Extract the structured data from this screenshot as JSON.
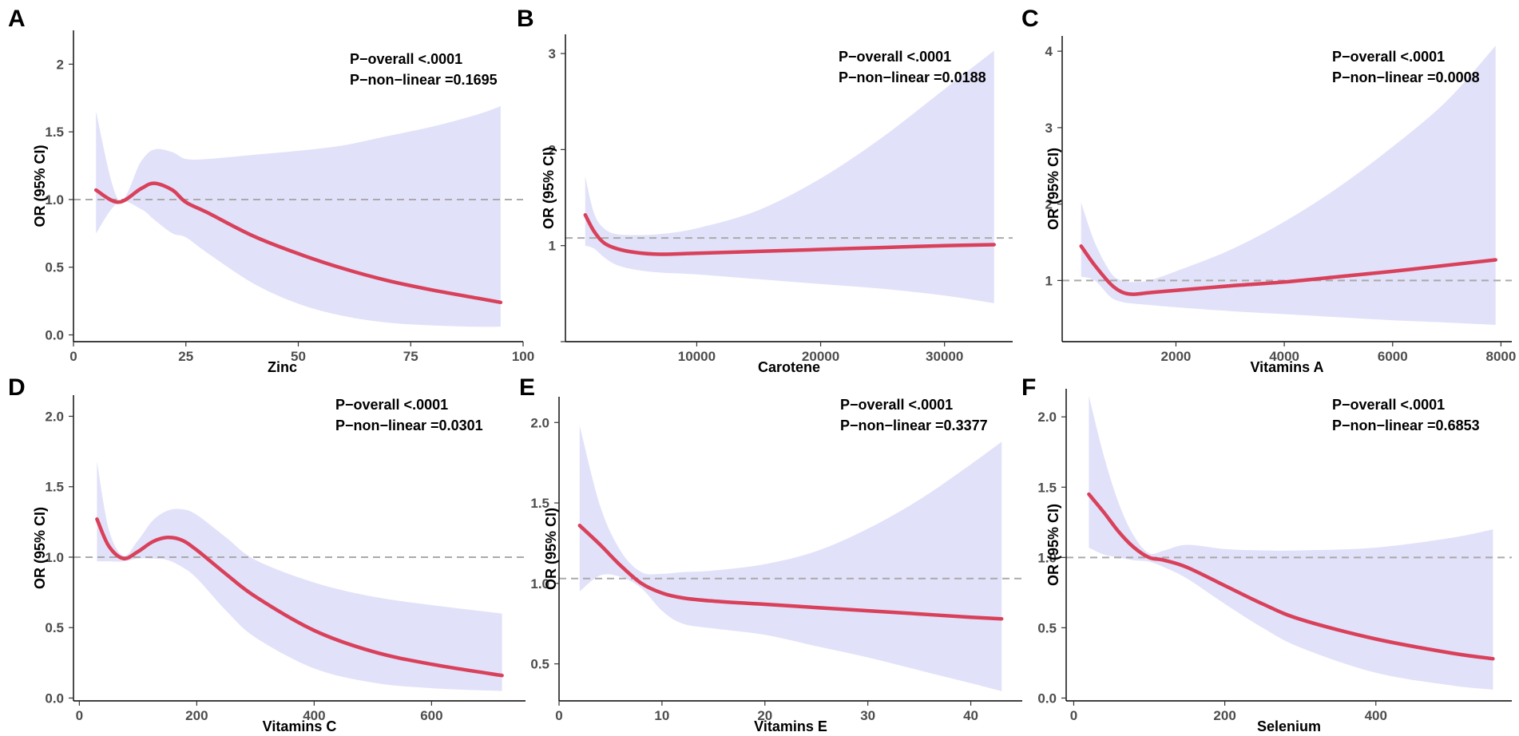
{
  "colors": {
    "ci_band": "#e1e1fa",
    "line": "#d9405a",
    "ref": "#aaaaaa",
    "text": "#000000"
  },
  "chart_data": [
    {
      "type": "line",
      "panel": "A",
      "xlabel": "Zinc",
      "ylabel": "OR (95% CI)",
      "xlim": [
        0,
        100
      ],
      "ylim": [
        -0.05,
        2.25
      ],
      "xticks": [
        0,
        25,
        50,
        75,
        100
      ],
      "xtick_labels": [
        "0",
        "25",
        "50",
        "75",
        "100"
      ],
      "yticks": [
        0,
        0.5,
        1,
        1.5,
        2
      ],
      "ytick_labels": [
        "0.0",
        "0.5",
        "1.0",
        "1.5",
        "2"
      ],
      "ref_y": 1.0,
      "annotations": [
        "P−overall <.0001",
        "P−non−linear =0.1695"
      ],
      "x": [
        5,
        10,
        15,
        18,
        22,
        25,
        30,
        40,
        50,
        60,
        70,
        80,
        90,
        95
      ],
      "or": [
        1.07,
        0.98,
        1.08,
        1.12,
        1.07,
        0.98,
        0.9,
        0.73,
        0.6,
        0.49,
        0.4,
        0.33,
        0.27,
        0.24
      ],
      "lower": [
        0.75,
        0.98,
        0.93,
        0.85,
        0.75,
        0.72,
        0.6,
        0.38,
        0.23,
        0.14,
        0.09,
        0.07,
        0.06,
        0.06
      ],
      "upper": [
        1.65,
        1.0,
        1.28,
        1.37,
        1.35,
        1.3,
        1.3,
        1.33,
        1.36,
        1.4,
        1.47,
        1.54,
        1.63,
        1.69
      ]
    },
    {
      "type": "line",
      "panel": "B",
      "xlabel": "Carotene",
      "ylabel": "OR (95% CI)",
      "xlim": [
        -600,
        35500
      ],
      "ylim": [
        0,
        3.2
      ],
      "xticks": [
        10000,
        20000,
        30000
      ],
      "xtick_labels": [
        "10000",
        "20000",
        "30000"
      ],
      "yticks": [
        0,
        1,
        2,
        3
      ],
      "ytick_labels": [
        "",
        "1",
        "2",
        "3"
      ],
      "ref_y": 1.08,
      "annotations": [
        "P−overall <.0001",
        "P−non−linear =0.0188"
      ],
      "x": [
        1000,
        1700,
        2500,
        3500,
        5000,
        7000,
        10000,
        15000,
        20000,
        25000,
        30000,
        34000
      ],
      "or": [
        1.32,
        1.15,
        1.03,
        0.97,
        0.93,
        0.91,
        0.92,
        0.94,
        0.96,
        0.98,
        1.0,
        1.01
      ],
      "lower": [
        1.0,
        0.97,
        0.88,
        0.8,
        0.75,
        0.72,
        0.7,
        0.65,
        0.6,
        0.55,
        0.48,
        0.4
      ],
      "upper": [
        1.72,
        1.34,
        1.18,
        1.12,
        1.11,
        1.12,
        1.18,
        1.37,
        1.7,
        2.13,
        2.63,
        3.03
      ]
    },
    {
      "type": "line",
      "panel": "C",
      "xlabel": "Vitamins A",
      "ylabel": "OR (95% CI)",
      "xlim": [
        -100,
        8200
      ],
      "ylim": [
        0.2,
        4.2
      ],
      "xticks": [
        2000,
        4000,
        6000,
        8000
      ],
      "xtick_labels": [
        "2000",
        "4000",
        "6000",
        "8000"
      ],
      "yticks": [
        1,
        2,
        3,
        4
      ],
      "ytick_labels": [
        "1",
        "2",
        "3",
        "4"
      ],
      "ref_y": 1.0,
      "annotations": [
        "P−overall <.0001",
        "P−non−linear =0.0008"
      ],
      "x": [
        250,
        500,
        800,
        1000,
        1200,
        1500,
        2000,
        3000,
        4000,
        5000,
        6000,
        7000,
        7900
      ],
      "or": [
        1.45,
        1.2,
        0.95,
        0.85,
        0.82,
        0.84,
        0.87,
        0.93,
        0.98,
        1.05,
        1.12,
        1.2,
        1.27
      ],
      "lower": [
        1.05,
        1.0,
        0.78,
        0.72,
        0.7,
        0.68,
        0.65,
        0.6,
        0.56,
        0.52,
        0.48,
        0.45,
        0.42
      ],
      "upper": [
        2.02,
        1.5,
        1.1,
        1.0,
        0.98,
        1.0,
        1.12,
        1.4,
        1.77,
        2.22,
        2.75,
        3.35,
        4.07
      ]
    },
    {
      "type": "line",
      "panel": "D",
      "xlabel": "Vitamins C",
      "ylabel": "OR (95% CI)",
      "xlim": [
        -10,
        760
      ],
      "ylim": [
        -0.02,
        2.15
      ],
      "xticks": [
        0,
        200,
        400,
        600
      ],
      "xtick_labels": [
        "0",
        "200",
        "400",
        "600"
      ],
      "yticks": [
        0,
        0.5,
        1,
        1.5,
        2
      ],
      "ytick_labels": [
        "0.0",
        "0.5",
        "1.0",
        "1.5",
        "2.0"
      ],
      "ref_y": 1.0,
      "annotations": [
        "P−overall <.0001",
        "P−non−linear =0.0301"
      ],
      "x": [
        30,
        50,
        75,
        100,
        125,
        150,
        175,
        200,
        250,
        300,
        400,
        500,
        600,
        720
      ],
      "or": [
        1.27,
        1.08,
        0.99,
        1.04,
        1.11,
        1.14,
        1.12,
        1.05,
        0.88,
        0.72,
        0.48,
        0.33,
        0.24,
        0.16
      ],
      "lower": [
        0.97,
        0.97,
        0.97,
        0.99,
        0.99,
        0.98,
        0.93,
        0.85,
        0.62,
        0.43,
        0.21,
        0.11,
        0.07,
        0.05
      ],
      "upper": [
        1.68,
        1.2,
        1.01,
        1.12,
        1.26,
        1.33,
        1.34,
        1.3,
        1.14,
        0.98,
        0.82,
        0.72,
        0.66,
        0.6
      ]
    },
    {
      "type": "line",
      "panel": "E",
      "xlabel": "Vitamins E",
      "ylabel": "OR (95% CI)",
      "xlim": [
        0,
        45
      ],
      "ylim": [
        0.27,
        2.16
      ],
      "xticks": [
        0,
        10,
        20,
        30,
        40
      ],
      "xtick_labels": [
        "0",
        "10",
        "20",
        "30",
        "40"
      ],
      "yticks": [
        0.5,
        1,
        1.5,
        2
      ],
      "ytick_labels": [
        "0.5",
        "1.0",
        "1.5",
        "2.0"
      ],
      "ref_y": 1.03,
      "annotations": [
        "P−overall <.0001",
        "P−non−linear =0.3377"
      ],
      "x": [
        2,
        4,
        6,
        8,
        10,
        12,
        15,
        20,
        25,
        30,
        35,
        40,
        43
      ],
      "or": [
        1.36,
        1.24,
        1.11,
        1.0,
        0.94,
        0.91,
        0.89,
        0.87,
        0.85,
        0.83,
        0.81,
        0.79,
        0.78
      ],
      "lower": [
        0.95,
        1.05,
        1.04,
        0.97,
        0.83,
        0.75,
        0.72,
        0.68,
        0.61,
        0.54,
        0.46,
        0.38,
        0.33
      ],
      "upper": [
        1.98,
        1.48,
        1.2,
        1.07,
        1.06,
        1.07,
        1.08,
        1.12,
        1.2,
        1.34,
        1.52,
        1.74,
        1.88
      ]
    },
    {
      "type": "line",
      "panel": "F",
      "xlabel": "Selenium",
      "ylabel": "OR (95% CI)",
      "xlim": [
        -10,
        580
      ],
      "ylim": [
        -0.02,
        2.2
      ],
      "xticks": [
        0,
        200,
        400
      ],
      "xtick_labels": [
        "0",
        "200",
        "400"
      ],
      "yticks": [
        0,
        0.5,
        1,
        1.5,
        2
      ],
      "ytick_labels": [
        "0.0",
        "0.5",
        "1.0",
        "1.5",
        "2.0"
      ],
      "ref_y": 1.0,
      "annotations": [
        "P−overall <.0001",
        "P−non−linear =0.6853"
      ],
      "x": [
        20,
        40,
        60,
        80,
        100,
        120,
        150,
        200,
        250,
        300,
        400,
        500,
        555
      ],
      "or": [
        1.45,
        1.32,
        1.18,
        1.07,
        1.0,
        0.98,
        0.93,
        0.8,
        0.67,
        0.56,
        0.42,
        0.32,
        0.28
      ],
      "lower": [
        1.07,
        1.02,
        1.0,
        0.98,
        0.97,
        0.93,
        0.85,
        0.67,
        0.5,
        0.36,
        0.18,
        0.09,
        0.06
      ],
      "upper": [
        2.15,
        1.72,
        1.38,
        1.15,
        1.03,
        1.05,
        1.09,
        1.06,
        1.05,
        1.05,
        1.07,
        1.14,
        1.2
      ]
    }
  ]
}
